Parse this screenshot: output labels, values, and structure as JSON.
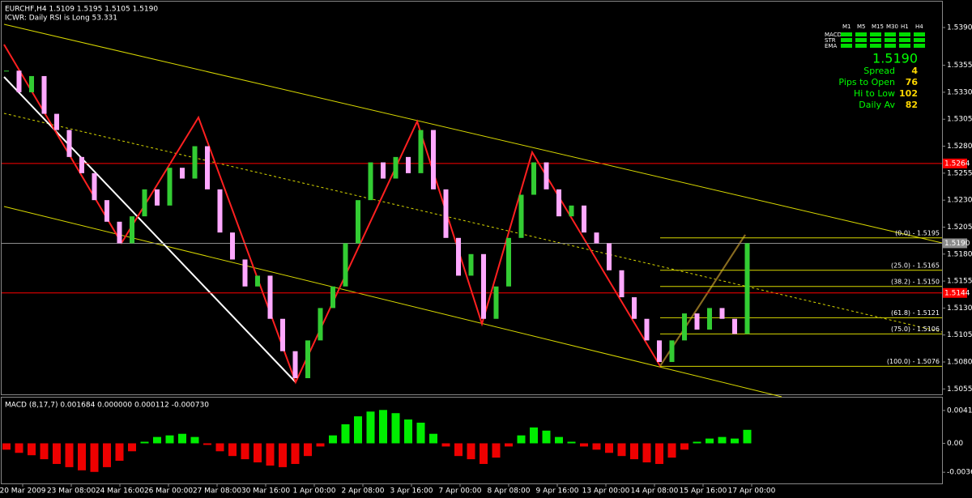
{
  "header": {
    "symbol_line": "EURCHF,H4  1.5109 1.5195 1.5105 1.5190",
    "indicator_line": "ICWR: Daily RSI is Long 53.331"
  },
  "info_panel": {
    "timeframes": [
      "M1",
      "M5",
      "M15",
      "M30",
      "H1",
      "H4"
    ],
    "rows": [
      "MACD",
      "STR",
      "EMA"
    ],
    "price": "1.5190",
    "stats": [
      {
        "label": "Spread",
        "value": "4"
      },
      {
        "label": "Pips to Open",
        "value": "76"
      },
      {
        "label": "Hi to Low",
        "value": "102"
      },
      {
        "label": "Daily Av",
        "value": "82"
      }
    ]
  },
  "chart_data": {
    "type": "candlestick",
    "ylim": [
      1.505,
      1.5414
    ],
    "yticks": [
      {
        "value": 1.539,
        "label": "1.5390"
      },
      {
        "value": 1.5355,
        "label": "1.5355"
      },
      {
        "value": 1.533,
        "label": "1.5330"
      },
      {
        "value": 1.5305,
        "label": "1.5305"
      },
      {
        "value": 1.528,
        "label": "1.5280"
      },
      {
        "value": 1.5255,
        "label": "1.5255"
      },
      {
        "value": 1.523,
        "label": "1.5230"
      },
      {
        "value": 1.5205,
        "label": "1.5205"
      },
      {
        "value": 1.518,
        "label": "1.5180"
      },
      {
        "value": 1.5155,
        "label": "1.5155"
      },
      {
        "value": 1.513,
        "label": "1.5130"
      },
      {
        "value": 1.5105,
        "label": "1.5105"
      },
      {
        "value": 1.508,
        "label": "1.5080"
      },
      {
        "value": 1.5055,
        "label": "1.5055"
      }
    ],
    "levels": [
      {
        "value": 1.5264,
        "label": "1.5264",
        "color": "#ff0000"
      },
      {
        "value": 1.519,
        "label": "1.5190",
        "color": "#8c8c8c"
      },
      {
        "value": 1.5144,
        "label": "1.5144",
        "color": "#ff0000"
      }
    ],
    "fib": [
      {
        "value": 1.5195,
        "label": "(0.0) - 1.5195"
      },
      {
        "value": 1.5165,
        "label": "(25.0) - 1.5165"
      },
      {
        "value": 1.515,
        "label": "(38.2) - 1.5150"
      },
      {
        "value": 1.5121,
        "label": "(61.8) - 1.5121"
      },
      {
        "value": 1.5106,
        "label": "(75.0) - 1.5106"
      },
      {
        "value": 1.5076,
        "label": "(100.0) - 1.5076"
      }
    ],
    "dates": [
      "20 Mar 2009",
      "23 Mar 08:00",
      "24 Mar 16:00",
      "26 Mar 00:00",
      "27 Mar 08:00",
      "30 Mar 16:00",
      "1 Apr 00:00",
      "2 Apr 08:00",
      "3 Apr 16:00",
      "7 Apr 00:00",
      "8 Apr 08:00",
      "9 Apr 16:00",
      "13 Apr 00:00",
      "14 Apr 08:00",
      "15 Apr 16:00",
      "17 Apr 00:00"
    ],
    "closes": [
      1.535,
      1.533,
      1.5345,
      1.531,
      1.5295,
      1.527,
      1.5255,
      1.523,
      1.521,
      1.519,
      1.5215,
      1.524,
      1.5225,
      1.526,
      1.525,
      1.528,
      1.524,
      1.52,
      1.5175,
      1.515,
      1.516,
      1.512,
      1.509,
      1.5065,
      1.51,
      1.513,
      1.515,
      1.519,
      1.523,
      1.5265,
      1.525,
      1.527,
      1.5255,
      1.5295,
      1.524,
      1.5195,
      1.516,
      1.518,
      1.512,
      1.515,
      1.5195,
      1.5235,
      1.5265,
      1.524,
      1.5215,
      1.5225,
      1.52,
      1.519,
      1.5165,
      1.514,
      1.512,
      1.51,
      1.508,
      1.51,
      1.5125,
      1.511,
      1.513,
      1.512,
      1.5106,
      1.519
    ],
    "up_color": "#33cc33",
    "down_color": "#ffa8ff"
  },
  "macd": {
    "label": "MACD  (8,17,7) 0.001684 0.000000 0.000112 -0.000730",
    "ylim": [
      -0.00505,
      0.00576
    ],
    "yticks": [
      {
        "value": 0.00414,
        "label": "0.00414"
      },
      {
        "value": 0,
        "label": "0.00"
      },
      {
        "value": -0.00364,
        "label": "-0.00364"
      }
    ],
    "values": [
      -0.0008,
      -0.0012,
      -0.0015,
      -0.002,
      -0.0026,
      -0.003,
      -0.0034,
      -0.0036,
      -0.003,
      -0.0022,
      -0.001,
      0.0002,
      0.0008,
      0.001,
      0.0012,
      0.0008,
      -0.0002,
      -0.001,
      -0.0016,
      -0.002,
      -0.0024,
      -0.0028,
      -0.003,
      -0.0026,
      -0.0016,
      -0.0004,
      0.001,
      0.0024,
      0.0034,
      0.004,
      0.0042,
      0.0038,
      0.003,
      0.0026,
      0.0012,
      -0.0004,
      -0.0016,
      -0.002,
      -0.0026,
      -0.0018,
      -0.0004,
      0.001,
      0.002,
      0.0016,
      0.0008,
      0.0002,
      -0.0004,
      -0.0008,
      -0.0012,
      -0.0016,
      -0.002,
      -0.0024,
      -0.0026,
      -0.0018,
      -0.0008,
      0.0002,
      0.0006,
      0.0008,
      0.0006,
      0.0017
    ],
    "up_color": "#00ee00",
    "down_color": "#ee0000"
  }
}
